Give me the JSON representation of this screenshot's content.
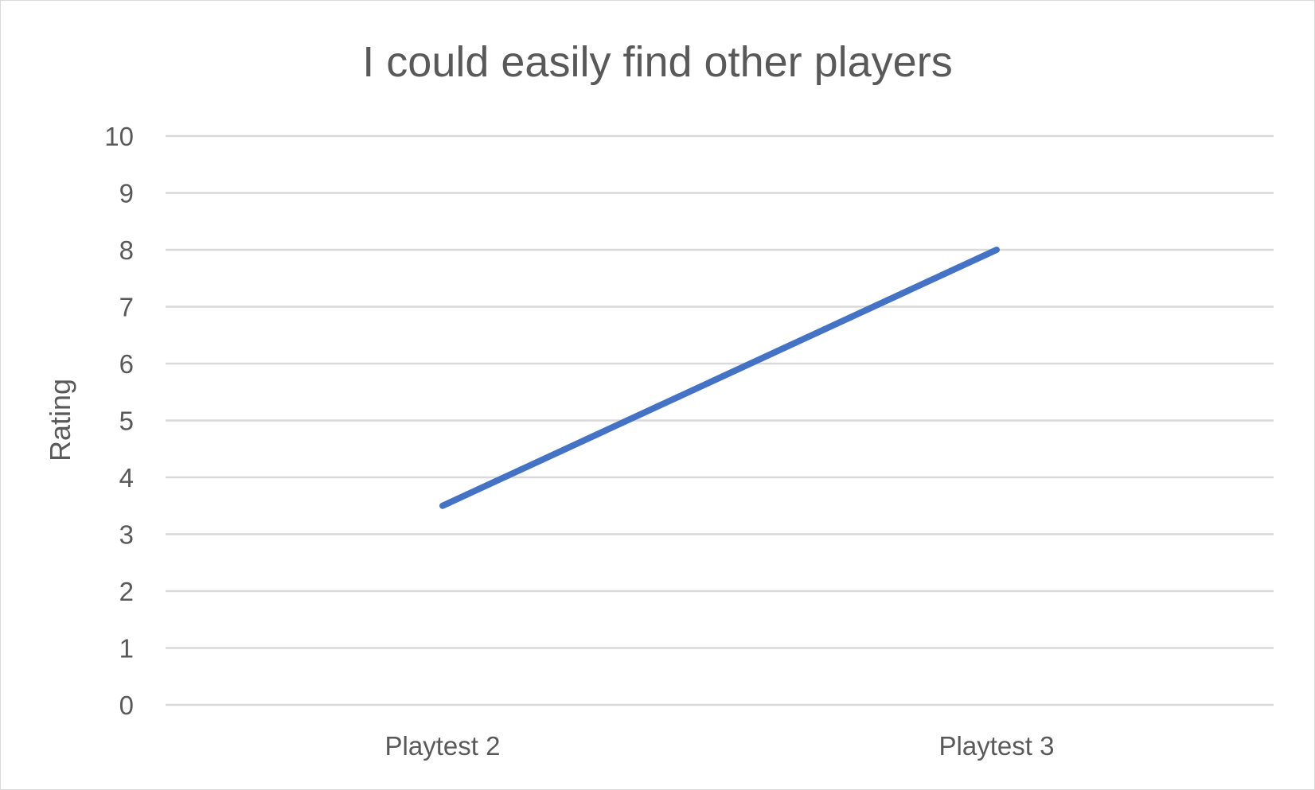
{
  "chart_data": {
    "type": "line",
    "title": "I could easily find other players",
    "xlabel": "",
    "ylabel": "Rating",
    "categories": [
      "Playtest 2",
      "Playtest 3"
    ],
    "series": [
      {
        "values": [
          3.5,
          8
        ],
        "color": "#4472c4"
      }
    ],
    "ylim": [
      0,
      10
    ],
    "yticks": [
      0,
      1,
      2,
      3,
      4,
      5,
      6,
      7,
      8,
      9,
      10
    ],
    "grid": true,
    "legend": "none"
  }
}
